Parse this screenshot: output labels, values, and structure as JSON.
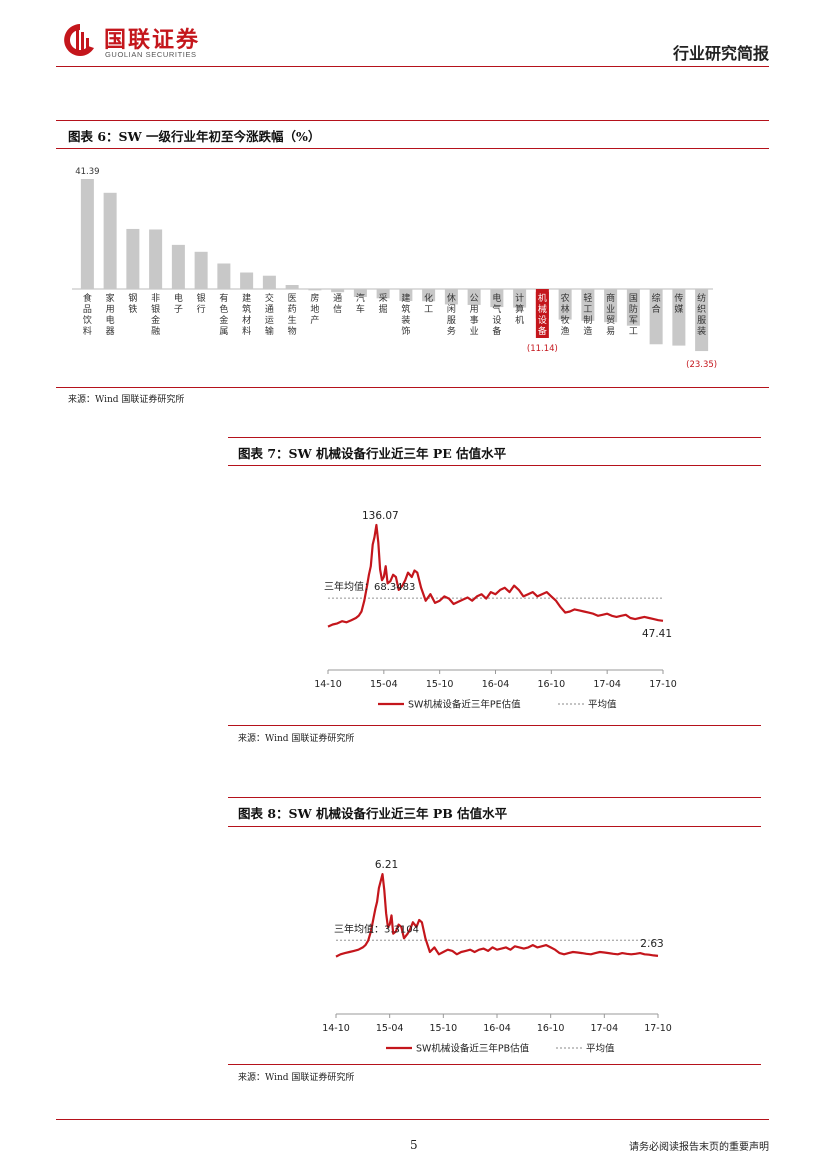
{
  "header": {
    "company_name": "国联证券",
    "company_en": "GUOLIAN SECURITIES",
    "report_type": "行业研究简报"
  },
  "figure6": {
    "title": "图表 6：SW 一级行业年初至今涨跌幅（%）",
    "source": "来源：Wind   国联证券研究所",
    "chart_data": {
      "type": "bar",
      "categories": [
        "食品饮料",
        "家用电器",
        "钢铁",
        "非银金融",
        "电子",
        "银行",
        "有色金属",
        "建筑材料",
        "交通运输",
        "医药生物",
        "房地产",
        "通信",
        "汽车",
        "采掘",
        "建筑装饰",
        "化工",
        "休闲服务",
        "公用事业",
        "电气设备",
        "计算机",
        "机械设备",
        "农林牧渔",
        "轻工制造",
        "商业贸易",
        "国防军工",
        "综合",
        "传媒",
        "纺织服装"
      ],
      "values": [
        41.39,
        36.2,
        22.6,
        22.4,
        16.6,
        14.0,
        9.6,
        6.2,
        5.0,
        1.5,
        -0.5,
        -1.2,
        -3.0,
        -3.5,
        -4.5,
        -4.6,
        -5.8,
        -6.0,
        -6.8,
        -7.0,
        -11.14,
        -11.5,
        -12.0,
        -12.5,
        -13.8,
        -20.8,
        -21.3,
        -23.35
      ],
      "labels": {
        "0": "41.39",
        "20": "(11.14)",
        "27": "(23.35)"
      },
      "highlight_index": 20,
      "colors": {
        "bar": "#c8c8c8",
        "highlight": "#c4161c",
        "label_negative": "#c4161c"
      },
      "ylim": [
        -25,
        45
      ]
    }
  },
  "figure7": {
    "title": "图表 7：SW 机械设备行业近三年 PE 估值水平",
    "source": "来源：Wind   国联证券研究所",
    "chart_data": {
      "type": "line",
      "x_ticks": [
        "14-10",
        "15-04",
        "15-10",
        "16-04",
        "16-10",
        "17-04",
        "17-10"
      ],
      "ylim": [
        0,
        150
      ],
      "series": [
        {
          "name": "SW机械设备近三年PE估值",
          "color": "#c4161c",
          "x": [
            0,
            0.5,
            1,
            1.5,
            2,
            2.5,
            3,
            3.3,
            3.6,
            3.9,
            4.2,
            4.4,
            4.6,
            4.8,
            5.0,
            5.2,
            5.4,
            5.6,
            5.8,
            6.0,
            6.2,
            6.4,
            6.7,
            7.0,
            7.3,
            7.6,
            8.0,
            8.3,
            8.6,
            9.0,
            9.3,
            9.6,
            10,
            10.5,
            11,
            11.5,
            12,
            12.5,
            13,
            13.5,
            14,
            14.5,
            15,
            15.5,
            16,
            16.5,
            17,
            17.5,
            18,
            18.5,
            19,
            19.5,
            20,
            20.5,
            21,
            21.5,
            22,
            22.5,
            23,
            23.5,
            24,
            24.5,
            25,
            25.5,
            26,
            26.5,
            27,
            27.5,
            28,
            28.5,
            29,
            29.5,
            30,
            30.5,
            31,
            31.5,
            32,
            32.5,
            33,
            33.5,
            34,
            34.5,
            35,
            35.5,
            36
          ],
          "y": [
            42,
            44,
            45,
            47,
            46,
            48,
            50,
            52,
            56,
            66,
            80,
            90,
            98,
            118,
            125,
            136.07,
            120,
            95,
            85,
            88,
            98,
            82,
            84,
            90,
            88,
            76,
            80,
            85,
            92,
            88,
            94,
            92,
            78,
            66,
            72,
            64,
            66,
            70,
            68,
            63,
            65,
            67,
            69,
            66,
            70,
            72,
            68,
            74,
            72,
            76,
            78,
            74,
            80,
            76,
            70,
            72,
            74,
            70,
            72,
            74,
            70,
            66,
            60,
            55,
            56,
            58,
            57,
            56,
            55,
            54,
            52,
            53,
            54,
            52,
            51,
            52,
            53,
            50,
            49,
            50,
            51,
            50,
            49,
            48,
            47.41
          ],
          "labels": {
            "15": "136.07",
            "84": "47.41"
          }
        },
        {
          "name": "平均值",
          "color": "#b0b0b0",
          "dashed": true,
          "value": 68.3483
        }
      ],
      "annotation": "三年均值：68.3483"
    }
  },
  "figure8": {
    "title": "图表 8：SW 机械设备行业近三年 PB 估值水平",
    "source": "来源：Wind   国联证券研究所",
    "chart_data": {
      "type": "line",
      "x_ticks": [
        "14-10",
        "15-04",
        "15-10",
        "16-04",
        "16-10",
        "17-04",
        "17-10"
      ],
      "ylim": [
        0,
        7
      ],
      "series": [
        {
          "name": "SW机械设备近三年PB估值",
          "color": "#c4161c",
          "x": [
            0,
            0.5,
            1,
            1.5,
            2,
            2.5,
            3,
            3.3,
            3.6,
            3.9,
            4.2,
            4.4,
            4.6,
            4.8,
            5.0,
            5.2,
            5.4,
            5.6,
            5.8,
            6.0,
            6.2,
            6.4,
            6.7,
            7.0,
            7.3,
            7.6,
            8.0,
            8.3,
            8.6,
            9.0,
            9.3,
            9.6,
            10,
            10.5,
            11,
            11.5,
            12,
            12.5,
            13,
            13.5,
            14,
            14.5,
            15,
            15.5,
            16,
            16.5,
            17,
            17.5,
            18,
            18.5,
            19,
            19.5,
            20,
            20.5,
            21,
            21.5,
            22,
            22.5,
            23,
            23.5,
            24,
            24.5,
            25,
            25.5,
            26,
            26.5,
            27,
            27.5,
            28,
            28.5,
            29,
            29.5,
            30,
            30.5,
            31,
            31.5,
            32,
            32.5,
            33,
            33.5,
            34,
            34.5,
            35,
            35.5,
            36
          ],
          "y": [
            2.6,
            2.7,
            2.75,
            2.8,
            2.85,
            2.9,
            3.0,
            3.1,
            3.3,
            3.7,
            4.3,
            4.7,
            5.0,
            5.6,
            5.9,
            6.21,
            5.5,
            4.5,
            3.9,
            4.0,
            4.4,
            3.6,
            3.7,
            4.0,
            3.9,
            3.4,
            3.6,
            3.8,
            4.1,
            3.9,
            4.2,
            4.1,
            3.4,
            2.8,
            3.0,
            2.7,
            2.8,
            2.9,
            2.85,
            2.7,
            2.8,
            2.85,
            2.9,
            2.8,
            2.9,
            2.95,
            2.85,
            3.0,
            2.9,
            2.95,
            3.0,
            2.9,
            3.05,
            3.0,
            2.95,
            3.0,
            3.1,
            3.0,
            3.05,
            3.1,
            3.0,
            2.9,
            2.75,
            2.7,
            2.75,
            2.8,
            2.78,
            2.75,
            2.72,
            2.7,
            2.75,
            2.8,
            2.78,
            2.75,
            2.72,
            2.7,
            2.75,
            2.72,
            2.7,
            2.72,
            2.75,
            2.7,
            2.68,
            2.65,
            2.63
          ],
          "labels": {
            "15": "6.21",
            "84": "2.63"
          }
        },
        {
          "name": "平均值",
          "color": "#b0b0b0",
          "dashed": true,
          "value": 3.3104
        }
      ],
      "annotation": "三年均值：3.3104"
    }
  },
  "footer": {
    "page_number": "5",
    "disclaimer": "请务必阅读报告末页的重要声明"
  }
}
